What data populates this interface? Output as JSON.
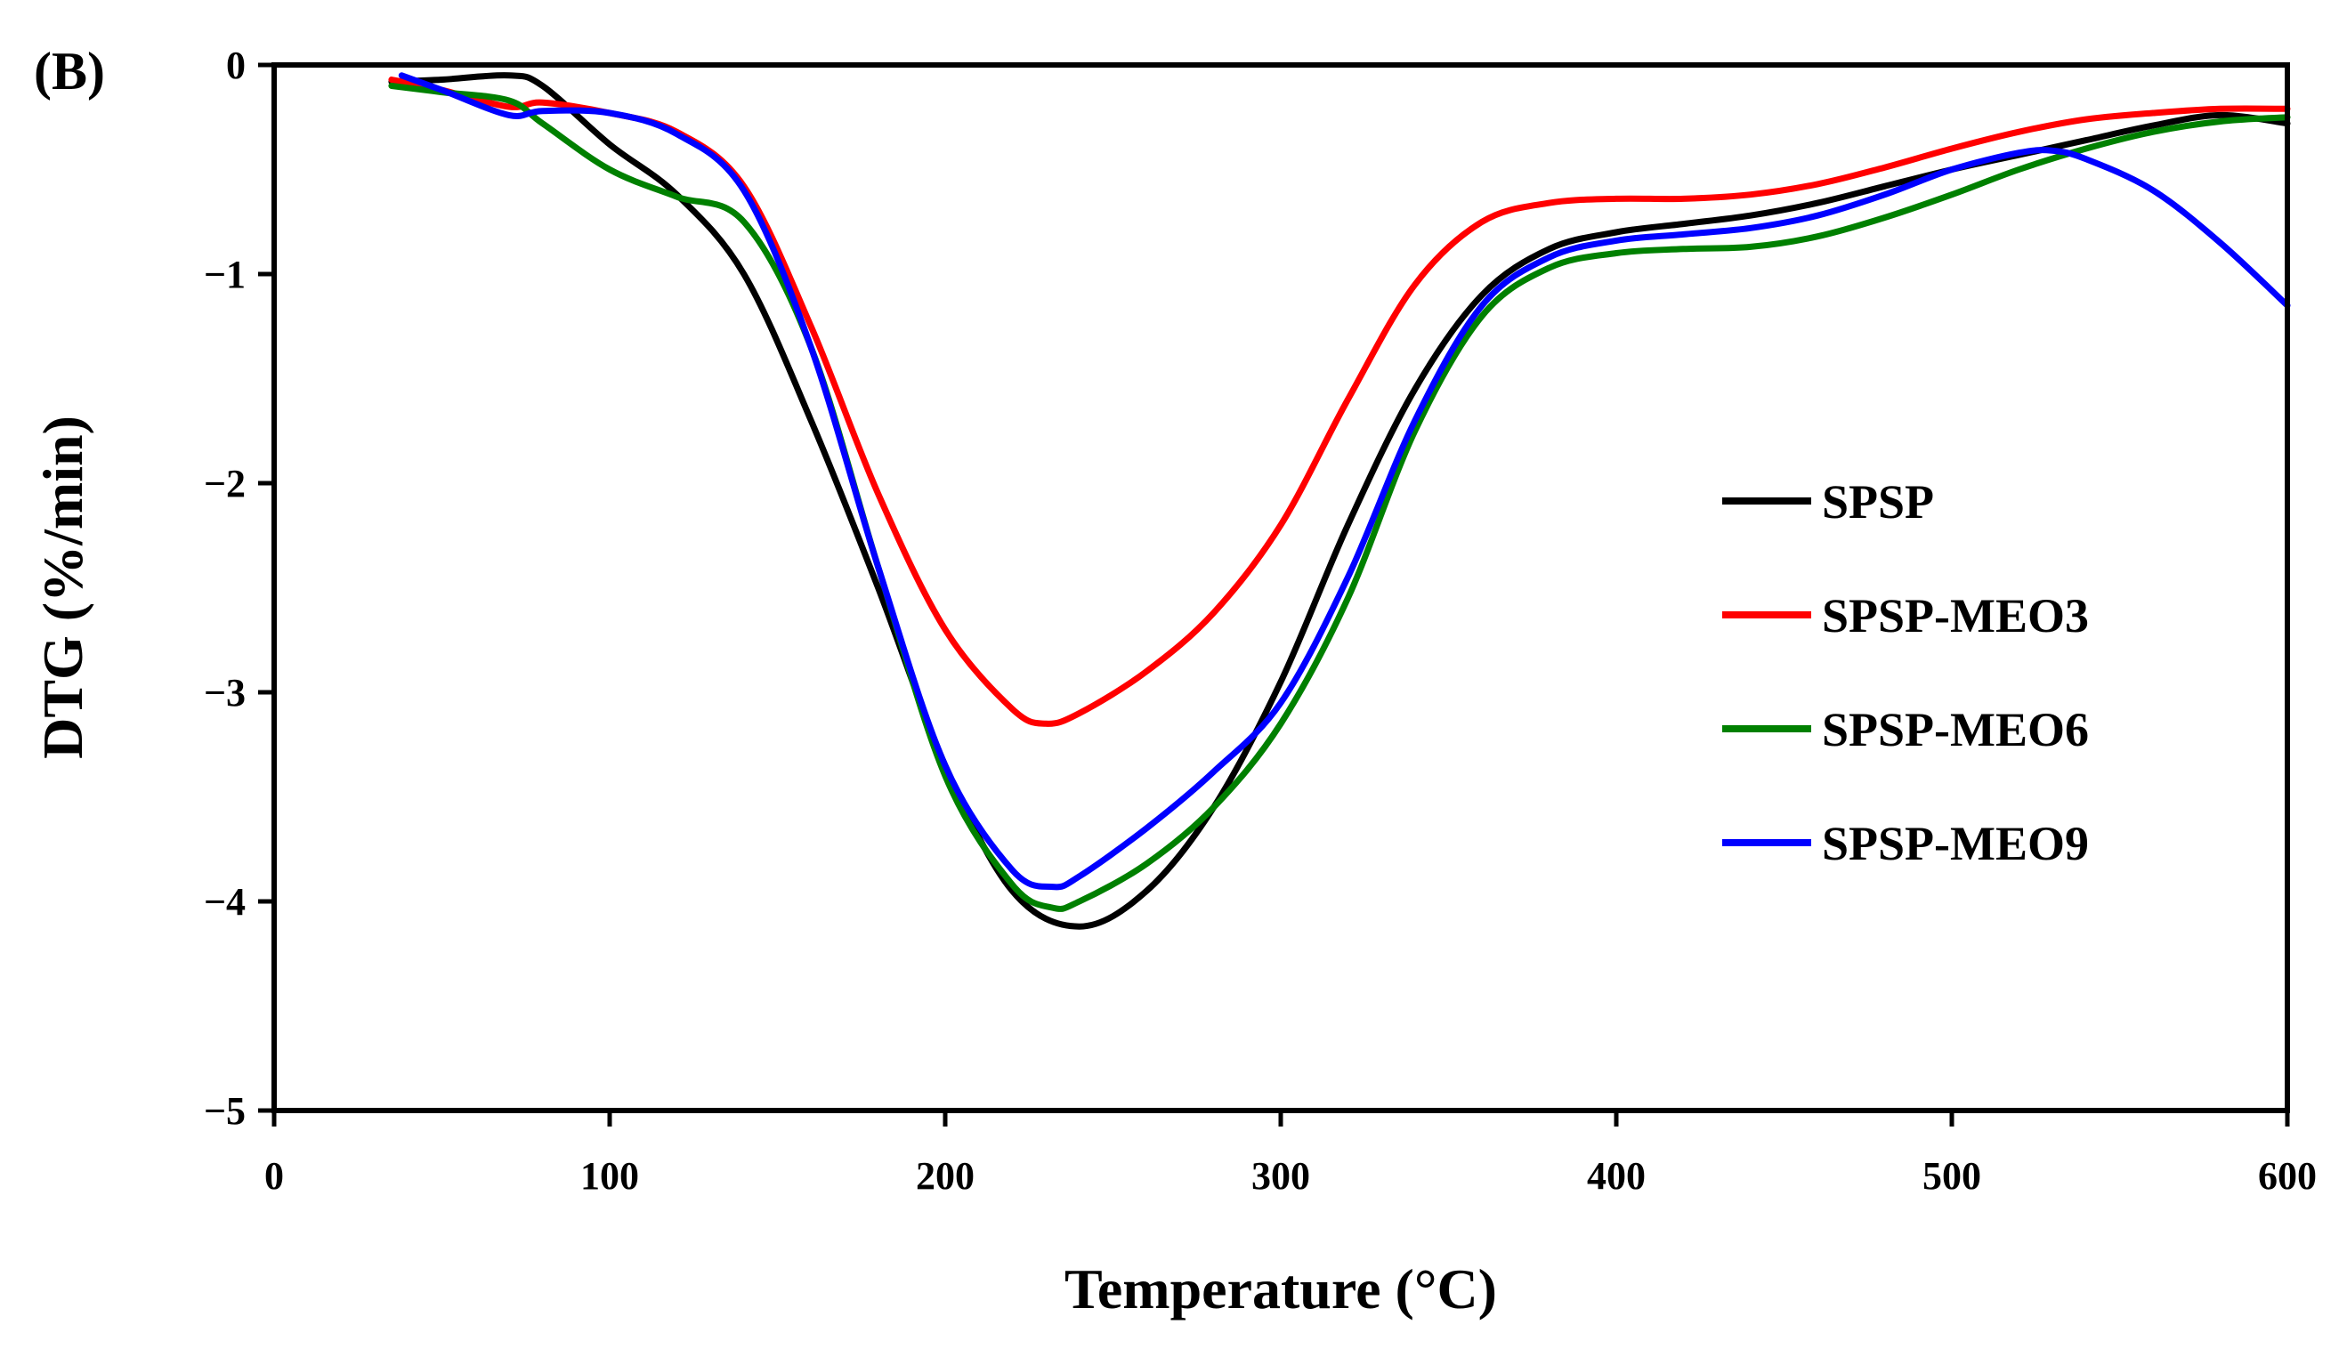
{
  "panel_label": "(B)",
  "chart_data": {
    "type": "line",
    "title": "",
    "xlabel": "Temperature (°C)",
    "ylabel": "DTG (%/min)",
    "xlim": [
      0,
      600
    ],
    "ylim": [
      -5,
      0
    ],
    "xticks": [
      0,
      100,
      200,
      300,
      400,
      500,
      600
    ],
    "yticks": [
      0,
      -1,
      -2,
      -3,
      -4,
      -5
    ],
    "ytick_labels": [
      "0",
      "−1",
      "−2",
      "−3",
      "−4",
      "−5"
    ],
    "grid": false,
    "legend_position": "right",
    "series": [
      {
        "name": "SPSP",
        "color": "#000000",
        "x": [
          35,
          50,
          70,
          80,
          100,
          120,
          140,
          160,
          180,
          200,
          220,
          240,
          260,
          280,
          300,
          320,
          340,
          360,
          380,
          400,
          420,
          440,
          460,
          480,
          500,
          520,
          540,
          560,
          580,
          600
        ],
        "y": [
          -0.08,
          -0.07,
          -0.05,
          -0.1,
          -0.38,
          -0.62,
          -1.0,
          -1.7,
          -2.5,
          -3.35,
          -3.95,
          -4.12,
          -3.95,
          -3.55,
          -2.95,
          -2.2,
          -1.55,
          -1.1,
          -0.88,
          -0.8,
          -0.76,
          -0.72,
          -0.66,
          -0.58,
          -0.5,
          -0.43,
          -0.36,
          -0.29,
          -0.24,
          -0.28
        ]
      },
      {
        "name": "SPSP-MEO3",
        "color": "#ff0000",
        "x": [
          35,
          50,
          70,
          80,
          100,
          120,
          140,
          160,
          180,
          200,
          220,
          230,
          240,
          260,
          280,
          300,
          320,
          340,
          360,
          380,
          400,
          420,
          440,
          460,
          480,
          500,
          520,
          540,
          560,
          580,
          600
        ],
        "y": [
          -0.07,
          -0.12,
          -0.2,
          -0.18,
          -0.23,
          -0.32,
          -0.58,
          -1.25,
          -2.05,
          -2.7,
          -3.08,
          -3.15,
          -3.1,
          -2.9,
          -2.62,
          -2.2,
          -1.6,
          -1.05,
          -0.75,
          -0.66,
          -0.64,
          -0.64,
          -0.62,
          -0.57,
          -0.49,
          -0.4,
          -0.32,
          -0.26,
          -0.23,
          -0.21,
          -0.21
        ]
      },
      {
        "name": "SPSP-MEO6",
        "color": "#008000",
        "x": [
          35,
          50,
          70,
          80,
          100,
          120,
          140,
          160,
          180,
          200,
          220,
          232,
          240,
          260,
          280,
          300,
          320,
          340,
          360,
          380,
          400,
          420,
          440,
          460,
          480,
          500,
          520,
          540,
          560,
          580,
          600
        ],
        "y": [
          -0.1,
          -0.13,
          -0.17,
          -0.28,
          -0.5,
          -0.63,
          -0.75,
          -1.35,
          -2.4,
          -3.4,
          -3.92,
          -4.03,
          -4.0,
          -3.82,
          -3.55,
          -3.15,
          -2.55,
          -1.75,
          -1.2,
          -0.97,
          -0.9,
          -0.88,
          -0.87,
          -0.82,
          -0.73,
          -0.62,
          -0.5,
          -0.4,
          -0.32,
          -0.27,
          -0.25
        ]
      },
      {
        "name": "SPSP-MEO9",
        "color": "#0000ff",
        "x": [
          38,
          50,
          70,
          80,
          100,
          120,
          140,
          160,
          180,
          200,
          220,
          232,
          240,
          260,
          280,
          300,
          320,
          340,
          360,
          380,
          400,
          420,
          440,
          460,
          480,
          500,
          520,
          530,
          540,
          560,
          580,
          600
        ],
        "y": [
          -0.05,
          -0.12,
          -0.24,
          -0.22,
          -0.23,
          -0.33,
          -0.6,
          -1.35,
          -2.4,
          -3.35,
          -3.85,
          -3.93,
          -3.88,
          -3.65,
          -3.38,
          -3.05,
          -2.45,
          -1.7,
          -1.15,
          -0.92,
          -0.84,
          -0.81,
          -0.78,
          -0.72,
          -0.62,
          -0.5,
          -0.42,
          -0.41,
          -0.45,
          -0.6,
          -0.85,
          -1.15
        ]
      }
    ]
  }
}
